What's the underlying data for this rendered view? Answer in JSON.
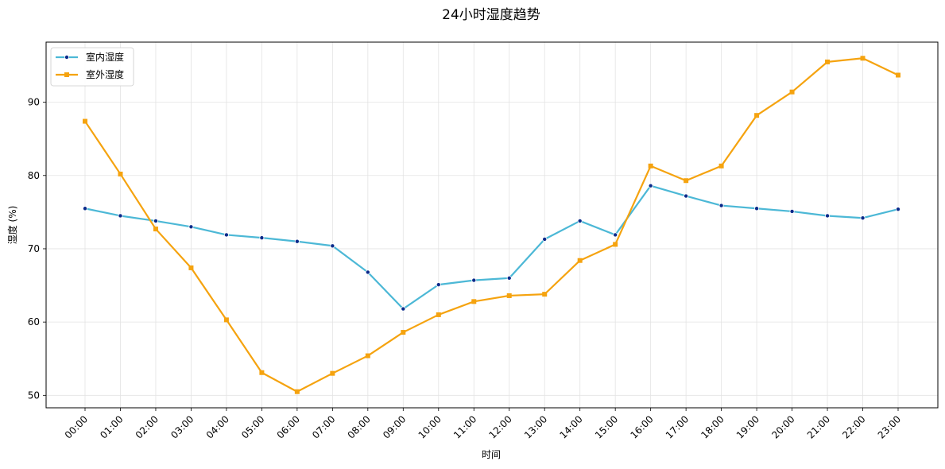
{
  "chart_data": {
    "type": "line",
    "title": "24小时湿度趋势",
    "xlabel": "时间",
    "ylabel": "湿度 (%)",
    "categories": [
      "00:00",
      "01:00",
      "02:00",
      "03:00",
      "04:00",
      "05:00",
      "06:00",
      "07:00",
      "08:00",
      "09:00",
      "10:00",
      "11:00",
      "12:00",
      "13:00",
      "14:00",
      "15:00",
      "16:00",
      "17:00",
      "18:00",
      "19:00",
      "20:00",
      "21:00",
      "22:00",
      "23:00"
    ],
    "ylim": [
      48.3,
      98.2
    ],
    "yticks": [
      50,
      60,
      70,
      80,
      90
    ],
    "grid": true,
    "legend_position": "top-left",
    "series": [
      {
        "name": "室内湿度",
        "color": "#4cb8d6",
        "marker": "circle",
        "marker_color": "#0a2a8a",
        "values": [
          75.5,
          74.5,
          73.8,
          73.0,
          71.9,
          71.5,
          71.0,
          70.4,
          66.8,
          61.8,
          65.1,
          65.7,
          66.0,
          71.3,
          73.8,
          71.9,
          78.6,
          77.2,
          75.9,
          75.5,
          75.1,
          74.5,
          74.2,
          75.4
        ]
      },
      {
        "name": "室外湿度",
        "color": "#f5a30f",
        "marker": "square",
        "marker_color": "#f5a30f",
        "values": [
          87.4,
          80.2,
          72.7,
          67.4,
          60.3,
          53.1,
          50.5,
          53.0,
          55.4,
          58.6,
          61.0,
          62.8,
          63.6,
          63.8,
          68.4,
          70.6,
          81.3,
          79.3,
          81.3,
          88.2,
          91.4,
          95.5,
          96.0,
          93.7
        ]
      }
    ]
  }
}
